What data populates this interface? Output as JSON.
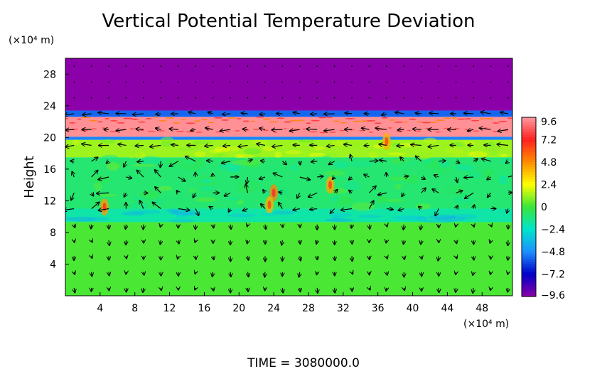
{
  "chart_data": {
    "type": "heatmap",
    "title": "Vertical Potential Temperature Deviation",
    "xlabel": "",
    "ylabel": "Height",
    "x_unit": "(×10⁴ m)",
    "y_unit": "(×10⁴ m)",
    "xlim": [
      0,
      51.5
    ],
    "ylim": [
      0,
      30
    ],
    "x_ticks": [
      4,
      8,
      12,
      16,
      20,
      24,
      28,
      32,
      36,
      40,
      44,
      48
    ],
    "y_ticks": [
      4,
      8,
      12,
      16,
      20,
      24,
      28
    ],
    "grid": false,
    "colorbar": {
      "range": [
        -9.6,
        9.6
      ],
      "ticks": [
        9.6,
        7.2,
        4.8,
        2.4,
        0,
        -2.4,
        -4.8,
        -7.2,
        -9.6
      ],
      "tick_labels": [
        "9.6",
        "7.2",
        "4.8",
        "2.4",
        "0",
        "−2.4",
        "−4.8",
        "−7.2",
        "−9.6"
      ],
      "colors": [
        "#ff9aa0",
        "#ff2020",
        "#ff8c00",
        "#ffff00",
        "#39e639",
        "#00e5cc",
        "#1e90ff",
        "#0000c8",
        "#8b00a8"
      ]
    },
    "layers": [
      {
        "y_from": 0,
        "y_to": 9.3,
        "value": 0.2
      },
      {
        "y_from": 9.3,
        "y_to": 11.0,
        "value": -1.8
      },
      {
        "y_from": 11.0,
        "y_to": 17.5,
        "value": -0.9
      },
      {
        "y_from": 17.5,
        "y_to": 19.7,
        "value": 1.2
      },
      {
        "y_from": 19.7,
        "y_to": 20.1,
        "value": -5.0
      },
      {
        "y_from": 20.1,
        "y_to": 22.6,
        "value": 9.4
      },
      {
        "y_from": 22.6,
        "y_to": 23.4,
        "value": -5.5
      },
      {
        "y_from": 23.4,
        "y_to": 30.0,
        "value": -9.6
      }
    ],
    "hot_spots": [
      {
        "x": 24.0,
        "y": 13.0,
        "value": 5.0
      },
      {
        "x": 23.5,
        "y": 11.5,
        "value": 4.0
      },
      {
        "x": 30.5,
        "y": 14.0,
        "value": 4.2
      },
      {
        "x": 4.5,
        "y": 11.2,
        "value": 4.5
      },
      {
        "x": 37.0,
        "y": 19.5,
        "value": 4.0
      }
    ],
    "vector_field": {
      "description": "wind vectors",
      "x_spacing": 2.0,
      "y_spacing": 2.0
    }
  },
  "time_label": "TIME  =  3080000.0"
}
